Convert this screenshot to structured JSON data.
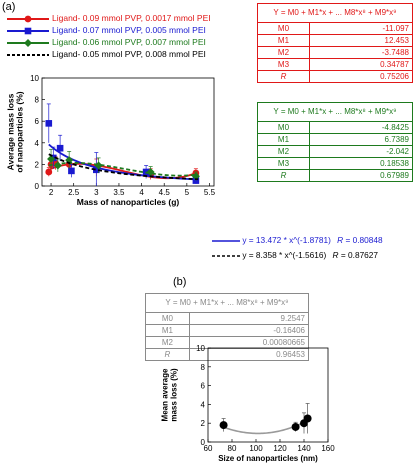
{
  "panels": {
    "a": "(a)",
    "b": "(b)"
  },
  "colors": {
    "red": "#e01818",
    "blue": "#1a1ad0",
    "green": "#1e7a1e",
    "black": "#000000",
    "gray": "#9a9a9a",
    "grayText": "#8a8a8a"
  },
  "legend": [
    {
      "label": "Ligand- 0.09 mmol PVP, 0.0017 mmol PEI",
      "color": "#e01818",
      "marker": "circle",
      "dash": false
    },
    {
      "label": "Ligand- 0.07 mmol PVP, 0.005 mmol PEI",
      "color": "#1a1ad0",
      "marker": "square",
      "dash": false
    },
    {
      "label": "Ligand- 0.06 mmol PVP, 0.007 mmol PEI",
      "color": "#1e7a1e",
      "marker": "diamond",
      "dash": false
    },
    {
      "label": "Ligand- 0.05 mmol PVP, 0.008 mmol PEI",
      "color": "#000000",
      "marker": "none",
      "dash": true
    }
  ],
  "fit_tables": {
    "red": {
      "header": "Y = M0 + M1*x + ... M8*x⁸ + M9*x⁹",
      "rows": [
        {
          "k": "M0",
          "v": "-11.097"
        },
        {
          "k": "M1",
          "v": "12.453"
        },
        {
          "k": "M2",
          "v": "-3.7488"
        },
        {
          "k": "M3",
          "v": "0.34787"
        },
        {
          "k": "R",
          "v": "0.75206"
        }
      ]
    },
    "green": {
      "header": "Y = M0 + M1*x + ... M8*x⁸ + M9*x⁹",
      "rows": [
        {
          "k": "M0",
          "v": "-4.8425"
        },
        {
          "k": "M1",
          "v": "6.7389"
        },
        {
          "k": "M2",
          "v": "-2.042"
        },
        {
          "k": "M3",
          "v": "0.18538"
        },
        {
          "k": "R",
          "v": "0.67989"
        }
      ]
    },
    "gray": {
      "header": "Y = M0 + M1*x + ... M8*x⁸ + M9*x⁹",
      "rows": [
        {
          "k": "M0",
          "v": "9.2547"
        },
        {
          "k": "M1",
          "v": "-0.16406"
        },
        {
          "k": "M2",
          "v": "0.00080665"
        },
        {
          "k": "R",
          "v": "0.96453"
        }
      ]
    }
  },
  "power_fits": [
    {
      "eq": "y = 13.472 * x^(-1.8781)",
      "r_label": "R",
      "r_eq": "=",
      "r_value": "0.80848",
      "color": "#1a1ad0"
    },
    {
      "eq": "y = 8.358 * x^(-1.5616)",
      "r_label": "R",
      "r_eq": "=",
      "r_value": "0.87627",
      "color": "#000000"
    }
  ],
  "chart_data": [
    {
      "type": "scatter",
      "panel": "(a)",
      "xlabel": "Mass of nanoparticles (g)",
      "ylabel": "Average mass loss of nanoparticles (%)",
      "xlim": [
        1.8,
        5.6
      ],
      "ylim": [
        0,
        10
      ],
      "x_ticks": [
        "2",
        "2.5",
        "3",
        "3.5",
        "4",
        "4.5",
        "5",
        "5.5"
      ],
      "y_ticks": [
        "0",
        "2",
        "4",
        "6",
        "8",
        "10"
      ],
      "series": [
        {
          "name": "Ligand- 0.09 mmol PVP, 0.0017 mmol PEI",
          "color": "#e01818",
          "marker": "circle",
          "x": [
            1.95,
            2.0,
            2.1,
            2.4,
            3.0,
            4.2,
            5.2
          ],
          "y": [
            1.3,
            2.0,
            2.1,
            2.0,
            1.7,
            1.1,
            1.2
          ],
          "err": [
            0.4,
            0.5,
            0.6,
            0.6,
            0.8,
            0.5,
            0.4
          ],
          "fit": {
            "type": "poly",
            "coef": [
              -11.097,
              12.453,
              -3.7488,
              0.34787
            ],
            "range": [
              1.95,
              5.25
            ],
            "dash": false
          }
        },
        {
          "name": "Ligand- 0.07 mmol PVP, 0.005 mmol PEI",
          "color": "#1a1ad0",
          "marker": "square",
          "x": [
            1.95,
            2.05,
            2.2,
            2.45,
            3.0,
            4.1,
            5.2
          ],
          "y": [
            5.8,
            2.6,
            3.5,
            1.4,
            1.5,
            1.3,
            0.5
          ],
          "err": [
            1.8,
            1.0,
            1.2,
            0.6,
            1.6,
            0.6,
            0.3
          ],
          "fit": {
            "type": "power",
            "a": 13.472,
            "b": -1.8781,
            "range": [
              1.95,
              5.25
            ],
            "dash": false
          }
        },
        {
          "name": "Ligand- 0.06 mmol PVP, 0.007 mmol PEI",
          "color": "#1e7a1e",
          "marker": "diamond",
          "x": [
            2.0,
            2.15,
            2.4,
            3.05,
            4.2,
            5.2
          ],
          "y": [
            2.5,
            1.9,
            2.4,
            1.9,
            1.3,
            0.9
          ],
          "err": [
            0.9,
            0.6,
            0.8,
            0.7,
            0.5,
            0.4
          ],
          "fit": {
            "type": "poly",
            "coef": [
              -4.8425,
              6.7389,
              -2.042,
              0.18538
            ],
            "range": [
              1.95,
              5.25
            ],
            "dash": true
          }
        },
        {
          "name": "Ligand- 0.05 mmol PVP, 0.008 mmol PEI",
          "color": "#000000",
          "marker": "none",
          "x": [],
          "y": [],
          "err": [],
          "fit": {
            "type": "power",
            "a": 8.358,
            "b": -1.5616,
            "range": [
              1.95,
              5.25
            ],
            "dash": true
          }
        }
      ]
    },
    {
      "type": "scatter",
      "panel": "(b)",
      "xlabel": "Size of nanoparticles (nm)",
      "ylabel": "Mean average mass loss (%)",
      "xlim": [
        60,
        160
      ],
      "ylim": [
        0,
        10
      ],
      "x_ticks": [
        "60",
        "80",
        "100",
        "120",
        "140",
        "160"
      ],
      "y_ticks": [
        "0",
        "2",
        "4",
        "6",
        "8",
        "10"
      ],
      "series": [
        {
          "color": "#000000",
          "marker": "circle",
          "x": [
            73,
            133,
            140,
            143
          ],
          "y": [
            1.8,
            1.6,
            2.0,
            2.5
          ],
          "err": [
            0.7,
            0.5,
            1.1,
            1.6
          ],
          "fit": {
            "type": "poly",
            "coef": [
              9.2547,
              -0.16406,
              0.00080665
            ],
            "range": [
              73,
              143
            ],
            "dash": false,
            "color": "#9a9a9a"
          }
        }
      ]
    }
  ]
}
